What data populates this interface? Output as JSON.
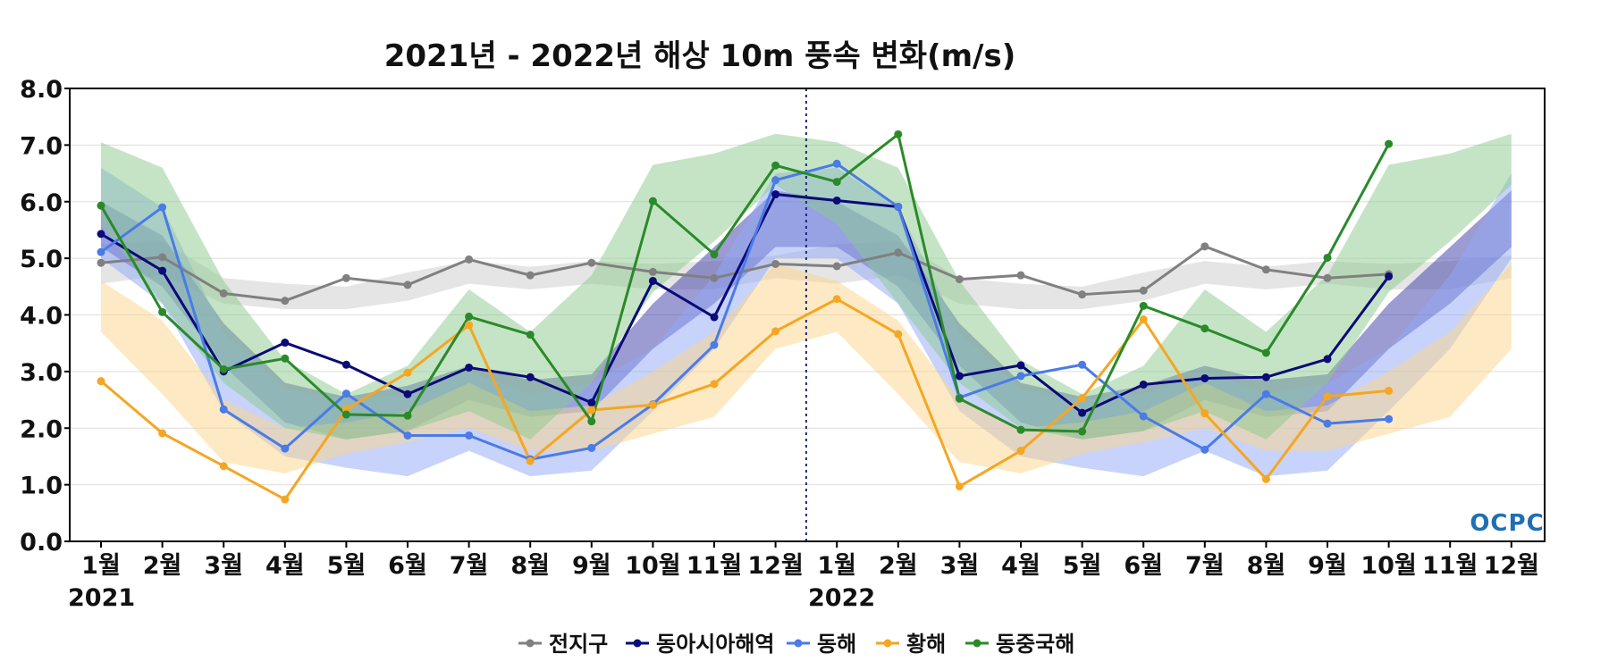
{
  "chart_data": {
    "type": "line",
    "title": "2021년 - 2022년 해상 10m 풍속 변화(m/s)",
    "ylim": [
      0,
      8
    ],
    "yticks": [
      "0.0",
      "1.0",
      "2.0",
      "3.0",
      "4.0",
      "5.0",
      "6.0",
      "7.0",
      "8.0"
    ],
    "categories": [
      "1월",
      "2월",
      "3월",
      "4월",
      "5월",
      "6월",
      "7월",
      "8월",
      "9월",
      "10월",
      "11월",
      "12월",
      "1월",
      "2월",
      "3월",
      "4월",
      "5월",
      "6월",
      "7월",
      "8월",
      "9월",
      "10월",
      "11월",
      "12월"
    ],
    "year_labels": [
      "2021",
      "2022"
    ],
    "grid": true,
    "legend_position": "bottom",
    "series": [
      {
        "name": "전지구",
        "color": "#808080",
        "values": [
          4.92,
          5.02,
          4.38,
          4.25,
          4.65,
          4.53,
          4.98,
          4.7,
          4.92,
          4.76,
          4.65,
          4.9,
          4.86,
          5.1,
          4.63,
          4.7,
          4.36,
          4.43,
          5.21,
          4.8,
          4.65,
          4.72,
          null,
          null
        ],
        "band_upper": [
          5.25,
          5.3,
          4.65,
          4.55,
          4.5,
          4.75,
          4.95,
          4.85,
          4.95,
          4.9,
          4.95,
          5.05,
          5.25,
          5.3,
          4.65,
          4.55,
          4.5,
          4.75,
          4.95,
          4.85,
          4.95,
          4.9,
          4.95,
          5.05
        ],
        "band_lower": [
          4.55,
          4.7,
          4.2,
          4.1,
          4.1,
          4.25,
          4.55,
          4.45,
          4.55,
          4.45,
          4.45,
          4.65,
          4.55,
          4.7,
          4.2,
          4.1,
          4.1,
          4.25,
          4.55,
          4.45,
          4.55,
          4.45,
          4.45,
          4.65
        ],
        "band_color": "#cccccc"
      },
      {
        "name": "동아시아해역",
        "color": "#0a0a78",
        "values": [
          5.43,
          4.78,
          3.0,
          3.51,
          3.12,
          2.6,
          3.07,
          2.9,
          2.45,
          4.6,
          3.96,
          6.13,
          6.02,
          5.91,
          2.92,
          3.11,
          2.27,
          2.77,
          2.88,
          2.9,
          3.22,
          4.68,
          null,
          null
        ],
        "band_upper": [
          6.0,
          5.4,
          3.85,
          2.8,
          2.55,
          2.75,
          3.1,
          2.85,
          2.95,
          4.2,
          5.2,
          6.2,
          6.0,
          5.4,
          3.85,
          2.8,
          2.55,
          2.75,
          3.1,
          2.85,
          2.95,
          4.2,
          5.2,
          6.2
        ],
        "band_lower": [
          5.2,
          4.5,
          3.1,
          2.1,
          1.8,
          1.95,
          2.5,
          2.2,
          2.3,
          3.4,
          4.2,
          5.2,
          5.2,
          4.5,
          3.1,
          2.1,
          1.8,
          1.95,
          2.5,
          2.2,
          2.3,
          3.4,
          4.2,
          5.2
        ],
        "band_color": "#3a3aa8"
      },
      {
        "name": "동해",
        "color": "#4a7be6",
        "values": [
          5.11,
          5.9,
          2.33,
          1.64,
          2.61,
          1.87,
          1.87,
          1.45,
          1.65,
          2.42,
          3.47,
          6.38,
          6.67,
          5.91,
          2.54,
          2.92,
          3.12,
          2.21,
          1.62,
          2.6,
          2.08,
          2.16,
          null,
          null
        ],
        "band_upper": [
          6.6,
          5.9,
          3.7,
          2.7,
          2.5,
          2.6,
          3.0,
          2.6,
          2.8,
          3.4,
          4.7,
          6.5,
          6.6,
          5.9,
          3.7,
          2.7,
          2.5,
          2.6,
          3.0,
          2.6,
          2.8,
          3.4,
          4.7,
          6.5
        ],
        "band_lower": [
          5.0,
          4.2,
          2.3,
          1.5,
          1.3,
          1.15,
          1.6,
          1.15,
          1.25,
          2.3,
          3.4,
          5.0,
          5.0,
          4.2,
          2.3,
          1.5,
          1.3,
          1.15,
          1.6,
          1.15,
          1.25,
          2.3,
          3.4,
          5.0
        ],
        "band_color": "#8fa8f5"
      },
      {
        "name": "황해",
        "color": "#f5a623",
        "values": [
          2.83,
          1.91,
          1.33,
          0.74,
          2.33,
          2.98,
          3.82,
          1.42,
          2.32,
          2.41,
          2.78,
          3.71,
          4.28,
          3.66,
          0.97,
          1.6,
          2.53,
          3.92,
          2.26,
          1.1,
          2.56,
          2.66,
          null,
          null
        ],
        "band_upper": [
          4.6,
          3.9,
          2.5,
          2.0,
          2.1,
          2.3,
          2.8,
          2.3,
          2.4,
          3.0,
          3.7,
          4.9,
          4.6,
          3.9,
          2.5,
          2.0,
          2.1,
          2.3,
          2.8,
          2.3,
          2.4,
          3.0,
          3.7,
          4.9
        ],
        "band_lower": [
          3.7,
          2.6,
          1.4,
          1.2,
          1.55,
          1.75,
          2.0,
          1.6,
          1.6,
          1.9,
          2.2,
          3.4,
          3.7,
          2.6,
          1.4,
          1.2,
          1.55,
          1.75,
          2.0,
          1.6,
          1.6,
          1.9,
          2.2,
          3.4
        ],
        "band_color": "#fcd68a"
      },
      {
        "name": "동중국해",
        "color": "#2a8a2a",
        "values": [
          5.93,
          4.05,
          3.04,
          3.23,
          2.24,
          2.22,
          3.97,
          3.65,
          2.12,
          6.01,
          5.07,
          6.64,
          6.35,
          7.19,
          2.52,
          1.97,
          1.94,
          4.16,
          3.76,
          3.33,
          5.01,
          7.02,
          null,
          null
        ],
        "band_upper": [
          7.05,
          6.6,
          4.6,
          3.2,
          2.6,
          3.1,
          4.45,
          3.7,
          4.7,
          6.65,
          6.85,
          7.2,
          7.05,
          6.6,
          4.6,
          3.2,
          2.6,
          3.1,
          4.45,
          3.7,
          4.7,
          6.65,
          6.85,
          7.2
        ],
        "band_lower": [
          5.6,
          4.2,
          2.8,
          2.0,
          1.8,
          1.95,
          2.3,
          1.8,
          2.8,
          4.4,
          5.3,
          6.3,
          5.6,
          4.2,
          2.8,
          2.0,
          1.8,
          1.95,
          2.3,
          1.8,
          2.8,
          4.4,
          5.3,
          6.3
        ],
        "band_color": "#8cc98c"
      }
    ]
  },
  "logo_text": "OCPC"
}
